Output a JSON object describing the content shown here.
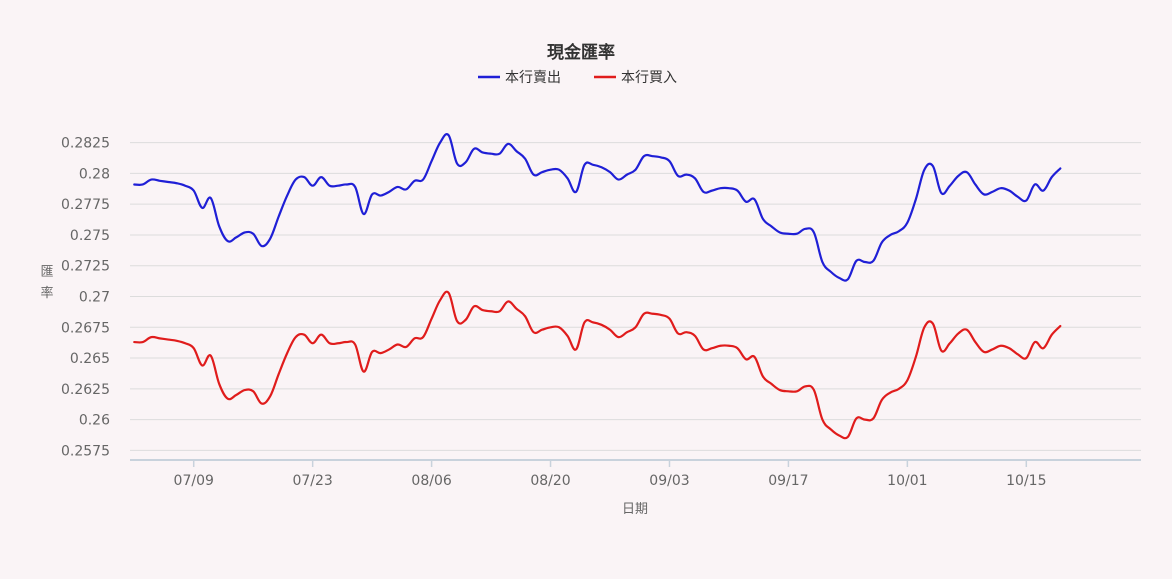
{
  "chart_data": {
    "type": "line",
    "title": "現金匯率",
    "xlabel": "日期",
    "ylabel": "匯率",
    "x_tick_labels": [
      "07/09",
      "07/23",
      "08/06",
      "08/20",
      "09/03",
      "09/17",
      "10/01",
      "10/15"
    ],
    "y_ticks": [
      0.2575,
      0.26,
      0.2625,
      0.265,
      0.2675,
      0.27,
      0.2725,
      0.275,
      0.2775,
      0.28,
      0.2825
    ],
    "y_tick_labels": [
      "0.2575",
      "0.26",
      "0.2625",
      "0.265",
      "0.2675",
      "0.27",
      "0.2725",
      "0.275",
      "0.2775",
      "0.28",
      "0.2825"
    ],
    "ylim": [
      0.2568,
      0.2845
    ],
    "grid": true,
    "legend_position": "top-center",
    "x_tick_index": [
      7,
      21,
      35,
      49,
      63,
      77,
      91,
      105
    ],
    "x_range": [
      -0.5,
      118.5
    ],
    "series": [
      {
        "name": "本行賣出",
        "color": "#1f1fd6",
        "values": [
          0.2791,
          0.2791,
          0.2795,
          0.2794,
          0.2793,
          0.2792,
          0.279,
          0.2786,
          0.2772,
          0.278,
          0.2757,
          0.2745,
          0.2748,
          0.2752,
          0.2751,
          0.2741,
          0.2747,
          0.2765,
          0.2782,
          0.2795,
          0.2797,
          0.279,
          0.2797,
          0.279,
          0.279,
          0.2791,
          0.2789,
          0.2767,
          0.2783,
          0.2782,
          0.2785,
          0.2789,
          0.2787,
          0.2794,
          0.2795,
          0.281,
          0.2825,
          0.2831,
          0.2808,
          0.2809,
          0.282,
          0.2817,
          0.2816,
          0.2816,
          0.2824,
          0.2818,
          0.2812,
          0.2799,
          0.2801,
          0.2803,
          0.2803,
          0.2796,
          0.2785,
          0.2807,
          0.2807,
          0.2805,
          0.2801,
          0.2795,
          0.2799,
          0.2803,
          0.2814,
          0.2814,
          0.2813,
          0.281,
          0.2798,
          0.2799,
          0.2796,
          0.2785,
          0.2786,
          0.2788,
          0.2788,
          0.2786,
          0.2777,
          0.2779,
          0.2763,
          0.2757,
          0.2752,
          0.2751,
          0.2751,
          0.2755,
          0.2752,
          0.2728,
          0.272,
          0.2715,
          0.2714,
          0.2729,
          0.2728,
          0.2729,
          0.2744,
          0.275,
          0.2753,
          0.276,
          0.2779,
          0.2803,
          0.2806,
          0.2784,
          0.279,
          0.2798,
          0.2801,
          0.2791,
          0.2783,
          0.2785,
          0.2788,
          0.2786,
          0.2781,
          0.2778,
          0.2791,
          0.2786,
          0.2797,
          0.2804
        ]
      },
      {
        "name": "本行買入",
        "color": "#e01c1c",
        "values": [
          0.2663,
          0.2663,
          0.2667,
          0.2666,
          0.2665,
          0.2664,
          0.2662,
          0.2658,
          0.2644,
          0.2652,
          0.2629,
          0.2617,
          0.262,
          0.2624,
          0.2623,
          0.2613,
          0.2619,
          0.2637,
          0.2654,
          0.2667,
          0.2669,
          0.2662,
          0.2669,
          0.2662,
          0.2662,
          0.2663,
          0.2661,
          0.2639,
          0.2655,
          0.2654,
          0.2657,
          0.2661,
          0.2659,
          0.2666,
          0.2667,
          0.2682,
          0.2697,
          0.2703,
          0.268,
          0.2681,
          0.2692,
          0.2689,
          0.2688,
          0.2688,
          0.2696,
          0.269,
          0.2684,
          0.2671,
          0.2673,
          0.2675,
          0.2675,
          0.2668,
          0.2657,
          0.2679,
          0.2679,
          0.2677,
          0.2673,
          0.2667,
          0.2671,
          0.2675,
          0.2686,
          0.2686,
          0.2685,
          0.2682,
          0.267,
          0.2671,
          0.2668,
          0.2657,
          0.2658,
          0.266,
          0.266,
          0.2658,
          0.2649,
          0.2651,
          0.2635,
          0.2629,
          0.2624,
          0.2623,
          0.2623,
          0.2627,
          0.2624,
          0.26,
          0.2592,
          0.2587,
          0.2586,
          0.2601,
          0.26,
          0.2601,
          0.2616,
          0.2622,
          0.2625,
          0.2632,
          0.2651,
          0.2675,
          0.2678,
          0.2656,
          0.2662,
          0.267,
          0.2673,
          0.2663,
          0.2655,
          0.2657,
          0.266,
          0.2658,
          0.2653,
          0.265,
          0.2663,
          0.2658,
          0.2669,
          0.2676
        ]
      }
    ]
  }
}
